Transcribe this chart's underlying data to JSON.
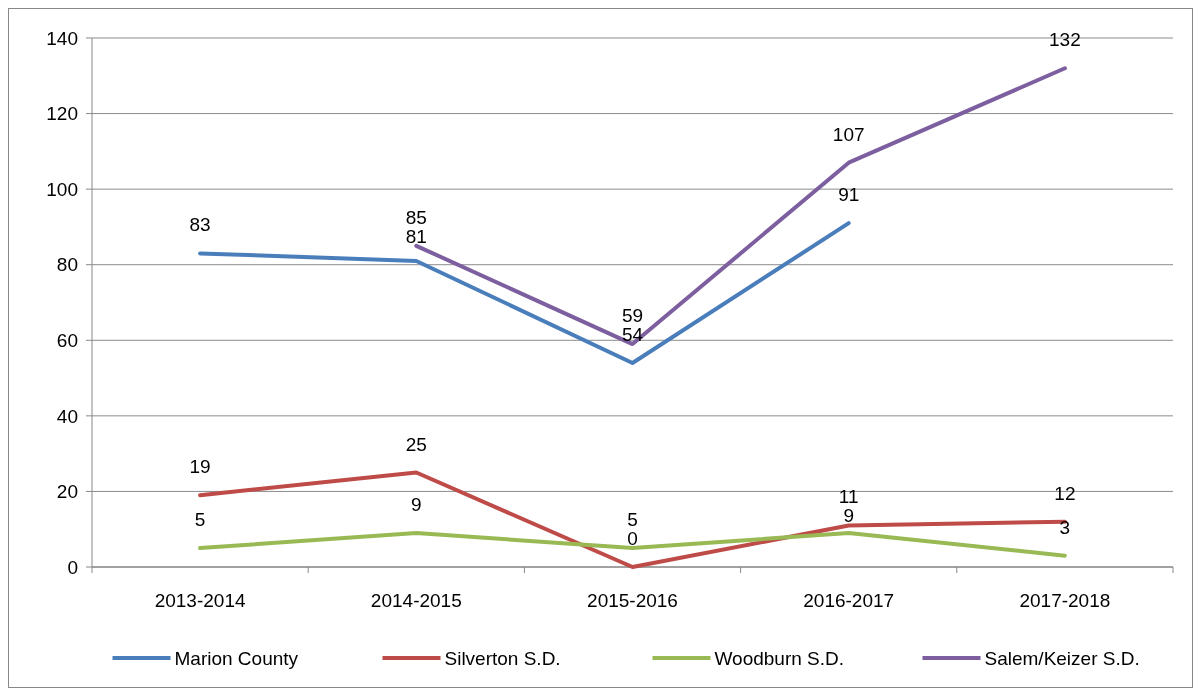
{
  "chart_data": {
    "type": "line",
    "categories": [
      "2013-2014",
      "2014-2015",
      "2015-2016",
      "2016-2017",
      "2017-2018"
    ],
    "series": [
      {
        "name": "Marion County",
        "color": "#4a7ebb",
        "values": [
          83,
          81,
          54,
          91,
          null
        ]
      },
      {
        "name": "Silverton S.D.",
        "color": "#be4b48",
        "values": [
          19,
          25,
          0,
          11,
          12
        ]
      },
      {
        "name": "Woodburn S.D.",
        "color": "#98b954",
        "values": [
          5,
          9,
          5,
          9,
          3
        ]
      },
      {
        "name": "Salem/Keizer S.D.",
        "color": "#7d5fa0",
        "values": [
          null,
          85,
          59,
          107,
          132
        ]
      }
    ],
    "ylim": [
      0,
      140
    ],
    "yticks": [
      0,
      20,
      40,
      60,
      80,
      100,
      120,
      140
    ],
    "grid": "y",
    "legend": "bottom",
    "data_labels": true,
    "marker": "none",
    "line_style": "solid"
  }
}
